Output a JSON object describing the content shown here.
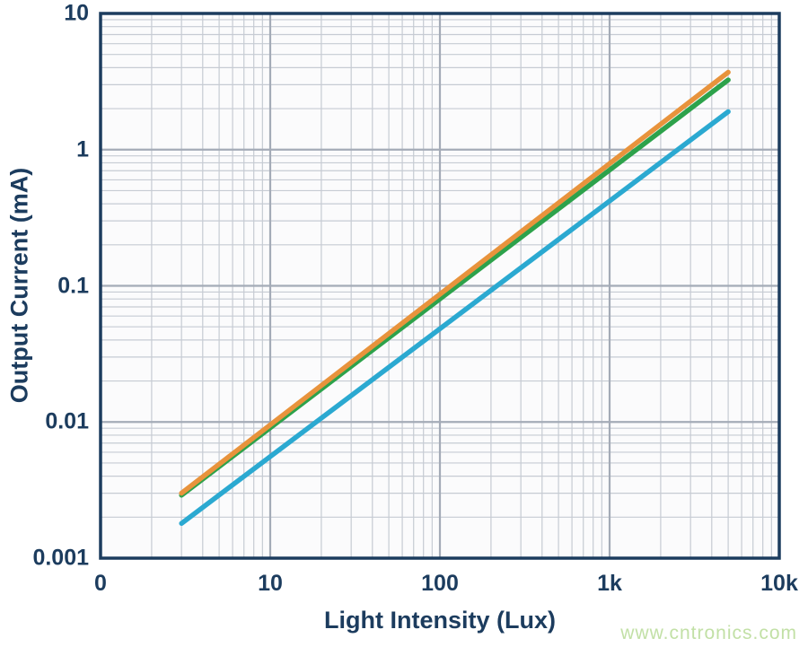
{
  "page": {
    "background_color": "#ffffff"
  },
  "watermark": {
    "text": "www.cntronics.com",
    "color": "#c2e0a6"
  },
  "chart_data": {
    "type": "line",
    "title": "",
    "xlabel": "Light Intensity (Lux)",
    "ylabel": "Output Current (mA)",
    "x_scale": "log",
    "y_scale": "log",
    "xlim": [
      1,
      10000
    ],
    "ylim": [
      0.001,
      10
    ],
    "x_ticks": [
      {
        "value": 1,
        "label": "0"
      },
      {
        "value": 10,
        "label": "10"
      },
      {
        "value": 100,
        "label": "100"
      },
      {
        "value": 1000,
        "label": "1k"
      },
      {
        "value": 10000,
        "label": "10k"
      }
    ],
    "y_ticks": [
      {
        "value": 10,
        "label": "10"
      },
      {
        "value": 1,
        "label": "1"
      },
      {
        "value": 0.1,
        "label": "0.1"
      },
      {
        "value": 0.01,
        "label": "0.01"
      },
      {
        "value": 0.001,
        "label": "0.001"
      }
    ],
    "grid": "log major+minor",
    "legend": "none",
    "series": [
      {
        "name": "blue-line",
        "color": "#2ba9d1",
        "points": [
          [
            3,
            0.0018
          ],
          [
            5000,
            1.9
          ]
        ]
      },
      {
        "name": "green-line",
        "color": "#2da24b",
        "points": [
          [
            3,
            0.0029
          ],
          [
            5000,
            3.25
          ]
        ]
      },
      {
        "name": "orange-line",
        "color": "#e8933c",
        "points": [
          [
            3,
            0.003
          ],
          [
            5000,
            3.7
          ]
        ]
      }
    ],
    "style": {
      "axis_color": "#1c3c5e",
      "tick_label_color": "#1c3c5e",
      "grid_minor_color": "#c6cbd3",
      "grid_major_color": "#a4abb7",
      "plot_background": "#fbfbfc",
      "line_width": 5.5,
      "border_width": 3.5
    }
  }
}
